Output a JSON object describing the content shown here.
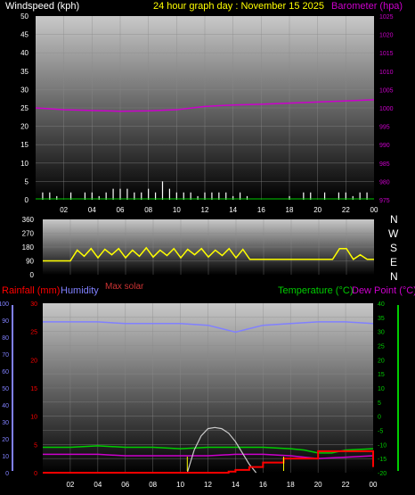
{
  "header": {
    "wind_title": "Windspeed (kph)",
    "center_title": "24 hour graph day : November 15 2025",
    "baro_title": "Barometer (hpa)"
  },
  "compass_letters": [
    "N",
    "W",
    "S",
    "E",
    "N"
  ],
  "lower_legend": {
    "rainfall": "Rainfall (mm)",
    "humidity": "Humidity",
    "max_solar": "Max solar",
    "temperature": "Temperature (°C)",
    "dewpoint": "Dew Point (°C)"
  },
  "colors": {
    "wind": "#ffffff",
    "barometer": "#cc00cc",
    "direction": "#ffff00",
    "rainfall": "#ff0000",
    "humidity": "#8080ff",
    "solar": "#cccccc",
    "temperature": "#00cc00",
    "dewpoint": "#cc00cc",
    "title": "#ffff00"
  },
  "chart_data": [
    {
      "type": "line",
      "title": "24 hour graph day : November 15 2025",
      "x_ticks": [
        "02",
        "04",
        "06",
        "08",
        "10",
        "12",
        "14",
        "16",
        "18",
        "20",
        "22",
        "00"
      ],
      "left_axis": {
        "label": "Windspeed (kph)",
        "ticks": [
          "0",
          "5",
          "10",
          "15",
          "20",
          "25",
          "30",
          "35",
          "40",
          "45",
          "50"
        ],
        "range": [
          0,
          50
        ]
      },
      "right_axis": {
        "label": "Barometer (hpa)",
        "ticks": [
          "975",
          "980",
          "985",
          "990",
          "995",
          "1000",
          "1005",
          "1010",
          "1015",
          "1020",
          "1025"
        ],
        "range": [
          975,
          1025
        ]
      },
      "series": [
        {
          "name": "Windspeed (kph)",
          "style": "spikes",
          "x": [
            0.5,
            1,
            1.5,
            2.5,
            3.5,
            4,
            4.5,
            5,
            5.5,
            6,
            6.5,
            7,
            7.5,
            8,
            8.5,
            9,
            9.5,
            10,
            10.5,
            11,
            11.5,
            12,
            12.5,
            13,
            13.5,
            14,
            14.5,
            15,
            18,
            19,
            19.5,
            20.5,
            21.5,
            22,
            22.5,
            23,
            23.5
          ],
          "values": [
            2,
            2,
            1,
            2,
            2,
            2,
            1,
            2,
            3,
            3,
            3,
            2,
            2,
            3,
            2,
            5,
            3,
            2,
            2,
            2,
            1,
            2,
            2,
            2,
            2,
            1,
            2,
            1,
            1,
            2,
            2,
            2,
            2,
            2,
            1,
            2,
            2
          ]
        },
        {
          "name": "Barometer (hpa)",
          "x": [
            0,
            2,
            4,
            6,
            8,
            10,
            12,
            14,
            16,
            18,
            20,
            22,
            24
          ],
          "values": [
            1000.0,
            999.5,
            999.3,
            999.1,
            999.2,
            999.5,
            1000.4,
            1000.8,
            1001.0,
            1001.3,
            1001.6,
            1001.9,
            1002.2
          ]
        }
      ]
    },
    {
      "type": "line",
      "title": "",
      "x_ticks": [],
      "left_axis": {
        "label": "",
        "ticks": [
          "0",
          "90",
          "180",
          "270",
          "360"
        ],
        "range": [
          0,
          360
        ]
      },
      "right_axis": {
        "label": "",
        "ticks": [
          "N",
          "W",
          "S",
          "E",
          "N"
        ]
      },
      "series": [
        {
          "name": "",
          "x": [
            0,
            1,
            2,
            2.5,
            3,
            3.5,
            4,
            4.5,
            5,
            5.5,
            6,
            6.5,
            7,
            7.5,
            8,
            8.5,
            9,
            9.5,
            10,
            10.5,
            11,
            11.5,
            12,
            12.5,
            13,
            13.5,
            14,
            14.5,
            15,
            16,
            17,
            18,
            19,
            20,
            21,
            21.5,
            22,
            22.5,
            23,
            23.5,
            24
          ],
          "values": [
            90,
            90,
            90,
            160,
            120,
            170,
            110,
            165,
            130,
            170,
            110,
            160,
            120,
            175,
            115,
            160,
            125,
            170,
            110,
            165,
            130,
            170,
            115,
            160,
            125,
            170,
            110,
            165,
            100,
            100,
            100,
            100,
            100,
            100,
            100,
            170,
            170,
            100,
            130,
            100,
            100
          ]
        }
      ]
    },
    {
      "type": "line",
      "title": "",
      "x_ticks": [
        "02",
        "04",
        "06",
        "08",
        "10",
        "12",
        "14",
        "16",
        "18",
        "20",
        "22",
        "00"
      ],
      "left_axis": {
        "label": "Humidity",
        "ticks": [
          "0",
          "10",
          "20",
          "30",
          "40",
          "50",
          "60",
          "70",
          "80",
          "90",
          "100"
        ],
        "range": [
          0,
          100
        ]
      },
      "rain_axis": {
        "label": "Rainfall (mm)",
        "ticks": [
          "0",
          "5",
          "10",
          "15",
          "20",
          "25",
          "30"
        ],
        "range": [
          0,
          30
        ]
      },
      "right_axis": {
        "label": "Temperature (°C)",
        "ticks": [
          "-20",
          "-15",
          "-10",
          "-5",
          "0",
          "5",
          "10",
          "15",
          "20",
          "25",
          "30",
          "35",
          "40"
        ],
        "range": [
          -20,
          40
        ]
      },
      "series": [
        {
          "name": "Humidity",
          "x": [
            0,
            2,
            4,
            6,
            8,
            10,
            12,
            13,
            14,
            15,
            16,
            18,
            20,
            22,
            24
          ],
          "values": [
            89,
            89,
            89,
            88,
            88,
            88,
            87,
            85,
            83,
            85,
            87,
            88,
            89,
            89,
            88
          ]
        },
        {
          "name": "Temperature (°C)",
          "x": [
            0,
            2,
            4,
            6,
            8,
            10,
            12,
            14,
            16,
            18,
            19,
            20,
            21,
            22,
            24
          ],
          "values": [
            -11,
            -11,
            -10.5,
            -11,
            -11,
            -11.5,
            -11,
            -11,
            -11,
            -11.5,
            -12,
            -13,
            -13,
            -12,
            -11.5
          ]
        },
        {
          "name": "Dew Point (°C)",
          "x": [
            0,
            2,
            4,
            6,
            8,
            10,
            12,
            14,
            16,
            18,
            19,
            20,
            22,
            24
          ],
          "values": [
            -13.5,
            -13.5,
            -13.5,
            -14,
            -14,
            -14,
            -14,
            -13.5,
            -13.5,
            -14,
            -14.5,
            -15,
            -14.5,
            -14
          ]
        },
        {
          "name": "Rainfall (mm)",
          "style": "step",
          "x": [
            0,
            11,
            13.5,
            14,
            15,
            16,
            17,
            17.5,
            19,
            20,
            21,
            22,
            23,
            24
          ],
          "values": [
            0,
            0,
            0.2,
            0.5,
            1.0,
            1.8,
            1.8,
            2.5,
            2.5,
            3.8,
            3.8,
            3.8,
            3.8,
            1.0
          ]
        },
        {
          "name": "Max solar",
          "x": [
            10.5,
            11,
            11.5,
            12,
            12.5,
            13,
            13.5,
            14,
            14.5,
            15,
            15.5
          ],
          "values": [
            0,
            4,
            6.5,
            7.8,
            8,
            7.8,
            7,
            5.5,
            3.5,
            1.5,
            0
          ]
        }
      ]
    }
  ]
}
